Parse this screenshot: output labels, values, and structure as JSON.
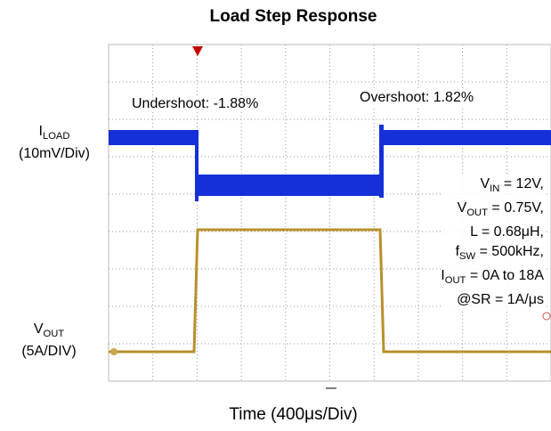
{
  "title": "Load Step Response",
  "annotations": {
    "undershoot": "Undershoot: -1.88%",
    "overshoot": "Overshoot: 1.82%"
  },
  "traces": [
    {
      "label": "I",
      "subscript": "LOAD",
      "scale": "(10mV/Div)"
    },
    {
      "label": "V",
      "subscript": "OUT",
      "scale": "(5A/DIV)"
    }
  ],
  "conditions": [
    {
      "symbol": "V",
      "subscript": "IN",
      "text": " = 12V,"
    },
    {
      "symbol": "V",
      "subscript": "OUT",
      "text": " = 0.75V,"
    },
    {
      "text": "L = 0.68μH,"
    },
    {
      "symbol": "f",
      "subscript": "SW",
      "text": " = 500kHz,"
    },
    {
      "symbol": "I",
      "subscript": "OUT",
      "text": " = 0A to 18A"
    },
    {
      "text": "@SR = 1A/μs"
    }
  ],
  "x_label": "Time (400μs/Div)"
}
